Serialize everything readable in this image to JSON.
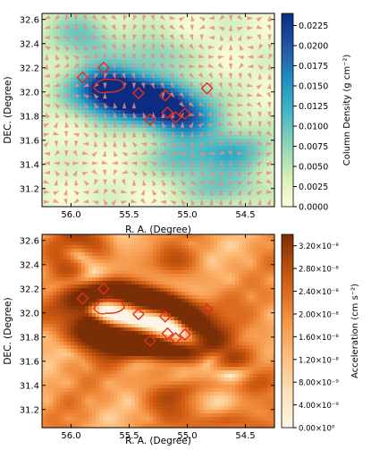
{
  "chart_data": [
    {
      "type": "heatmap",
      "name": "column-density-map",
      "xlabel": "R. A. (Degree)",
      "ylabel": "DEC. (Degree)",
      "x_ticks": [
        "56.0",
        "55.5",
        "55.0",
        "54.5"
      ],
      "x_tick_values": [
        56.0,
        55.5,
        55.0,
        54.5
      ],
      "y_ticks": [
        "31.2",
        "31.4",
        "31.6",
        "31.8",
        "32.0",
        "32.2",
        "32.4",
        "32.6"
      ],
      "y_tick_values": [
        31.2,
        31.4,
        31.6,
        31.8,
        32.0,
        32.2,
        32.4,
        32.6
      ],
      "xlim": [
        56.25,
        54.25
      ],
      "ylim": [
        31.05,
        32.65
      ],
      "colorbar": {
        "label": "Column Density (g cm⁻²)",
        "range": [
          0.0,
          0.024
        ],
        "ticks": [
          "0.0225",
          "0.0200",
          "0.0175",
          "0.0150",
          "0.0125",
          "0.0100",
          "0.0075",
          "0.0050",
          "0.0025",
          "0.0000"
        ],
        "tick_values": [
          0.0225,
          0.02,
          0.0175,
          0.015,
          0.0125,
          0.01,
          0.0075,
          0.005,
          0.0025,
          0.0
        ],
        "colormap": [
          "#ffffd9",
          "#c7e9b4",
          "#7fcdbb",
          "#41b6c4",
          "#1d91c0",
          "#225ea8",
          "#0c2c84"
        ]
      },
      "vector_field": {
        "color": "#e88a8a",
        "description_shown": "acceleration vectors"
      },
      "contour_color": "#e0301e"
    },
    {
      "type": "heatmap",
      "name": "acceleration-map",
      "xlabel": "R. A. (Degree)",
      "ylabel": "DEC. (Degree)",
      "x_ticks": [
        "56.0",
        "55.5",
        "55.0",
        "54.5"
      ],
      "x_tick_values": [
        56.0,
        55.5,
        55.0,
        54.5
      ],
      "y_ticks": [
        "31.2",
        "31.4",
        "31.6",
        "31.8",
        "32.0",
        "32.2",
        "32.4",
        "32.6"
      ],
      "y_tick_values": [
        31.2,
        31.4,
        31.6,
        31.8,
        32.0,
        32.2,
        32.4,
        32.6
      ],
      "xlim": [
        56.25,
        54.25
      ],
      "ylim": [
        31.05,
        32.65
      ],
      "colorbar": {
        "label": "Acceleration (cm s⁻²)",
        "range": [
          0.0,
          3.4e-08
        ],
        "ticks": [
          "3.20×10⁻⁸",
          "2.80×10⁻⁸",
          "2.40×10⁻⁸",
          "2.00×10⁻⁸",
          "1.60×10⁻⁸",
          "1.20×10⁻⁸",
          "8.00×10⁻⁹",
          "4.00×10⁻⁹",
          "0.00×10⁰"
        ],
        "tick_values": [
          3.2e-08,
          2.8e-08,
          2.4e-08,
          2e-08,
          1.6e-08,
          1.2e-08,
          8e-09,
          4e-09,
          0.0
        ],
        "colormap": [
          "#fff5e6",
          "#fddcb0",
          "#fdb872",
          "#f08a3a",
          "#d45e14",
          "#a6430b",
          "#7a2e05"
        ]
      },
      "contour_color": "#e0301e"
    }
  ],
  "regions": [
    {
      "ra": 55.9,
      "dec": 32.12
    },
    {
      "ra": 55.72,
      "dec": 32.2
    },
    {
      "ra": 55.65,
      "dec": 32.05
    },
    {
      "ra": 55.42,
      "dec": 31.99
    },
    {
      "ra": 55.32,
      "dec": 31.77
    },
    {
      "ra": 55.19,
      "dec": 31.97
    },
    {
      "ra": 55.17,
      "dec": 31.83
    },
    {
      "ra": 55.1,
      "dec": 31.79
    },
    {
      "ra": 55.02,
      "dec": 31.82
    },
    {
      "ra": 54.83,
      "dec": 32.03
    }
  ],
  "hotspots_density": [
    {
      "ra": 55.55,
      "dec": 31.95,
      "amp": 1.0,
      "sx": 0.28,
      "sy": 0.12
    },
    {
      "ra": 55.2,
      "dec": 31.9,
      "amp": 0.85,
      "sx": 0.25,
      "sy": 0.12
    },
    {
      "ra": 55.7,
      "dec": 32.08,
      "amp": 0.7,
      "sx": 0.18,
      "sy": 0.1
    },
    {
      "ra": 55.0,
      "dec": 31.75,
      "amp": 0.55,
      "sx": 0.22,
      "sy": 0.1
    },
    {
      "ra": 54.6,
      "dec": 31.5,
      "amp": 0.5,
      "sx": 0.22,
      "sy": 0.12
    },
    {
      "ra": 55.05,
      "dec": 31.45,
      "amp": 0.4,
      "sx": 0.18,
      "sy": 0.12
    },
    {
      "ra": 54.7,
      "dec": 31.2,
      "amp": 0.35,
      "sx": 0.2,
      "sy": 0.1
    },
    {
      "ra": 55.9,
      "dec": 32.45,
      "amp": 0.35,
      "sx": 0.2,
      "sy": 0.15
    },
    {
      "ra": 55.3,
      "dec": 32.3,
      "amp": 0.3,
      "sx": 0.2,
      "sy": 0.12
    }
  ]
}
